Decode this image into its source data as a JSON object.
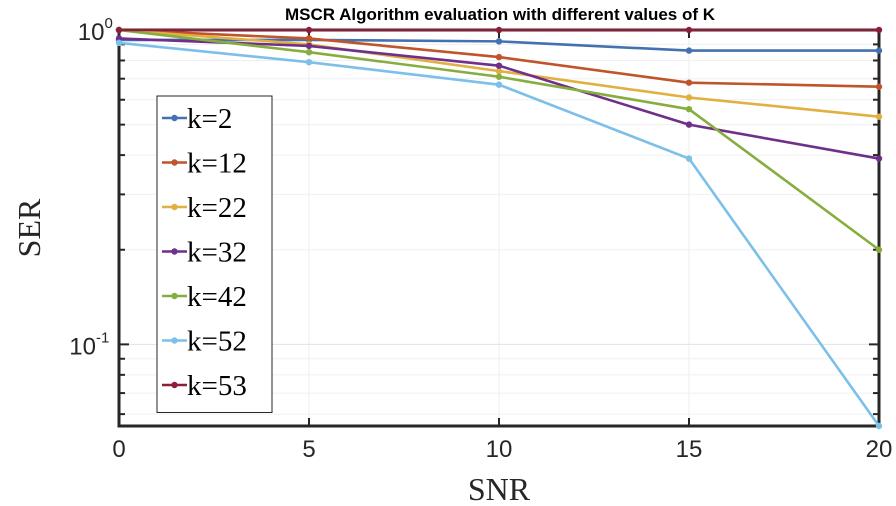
{
  "chart_data": {
    "type": "line",
    "title": "MSCR Algorithm evaluation with different values of K",
    "xlabel": "SNR",
    "ylabel": "SER",
    "x": [
      0,
      5,
      10,
      15,
      20
    ],
    "xlim": [
      0,
      20
    ],
    "ylim": [
      0.055,
      1
    ],
    "yscale": "log",
    "xticks": [
      "0",
      "5",
      "10",
      "15",
      "20"
    ],
    "yticks": [
      {
        "base": "10",
        "exp": "0",
        "value": 1
      },
      {
        "base": "10",
        "exp": "-1",
        "value": 0.1
      }
    ],
    "grid": true,
    "legend_position": "left",
    "series": [
      {
        "name": "k=2",
        "color": "#4472b0",
        "values": [
          0.93,
          0.93,
          0.92,
          0.86,
          0.86
        ]
      },
      {
        "name": "k=12",
        "color": "#c0542a",
        "values": [
          1.0,
          0.94,
          0.82,
          0.68,
          0.66
        ]
      },
      {
        "name": "k=22",
        "color": "#e0b040",
        "values": [
          1.0,
          0.9,
          0.74,
          0.61,
          0.53
        ]
      },
      {
        "name": "k=32",
        "color": "#6f2f8a",
        "values": [
          0.94,
          0.89,
          0.77,
          0.5,
          0.39
        ]
      },
      {
        "name": "k=42",
        "color": "#86ad3e",
        "values": [
          1.0,
          0.85,
          0.71,
          0.56,
          0.2
        ]
      },
      {
        "name": "k=52",
        "color": "#7cc0ea",
        "values": [
          0.91,
          0.79,
          0.67,
          0.39,
          0.055
        ]
      },
      {
        "name": "k=53",
        "color": "#8b1f3a",
        "values": [
          1.0,
          1.0,
          1.0,
          1.0,
          1.0
        ]
      }
    ]
  }
}
